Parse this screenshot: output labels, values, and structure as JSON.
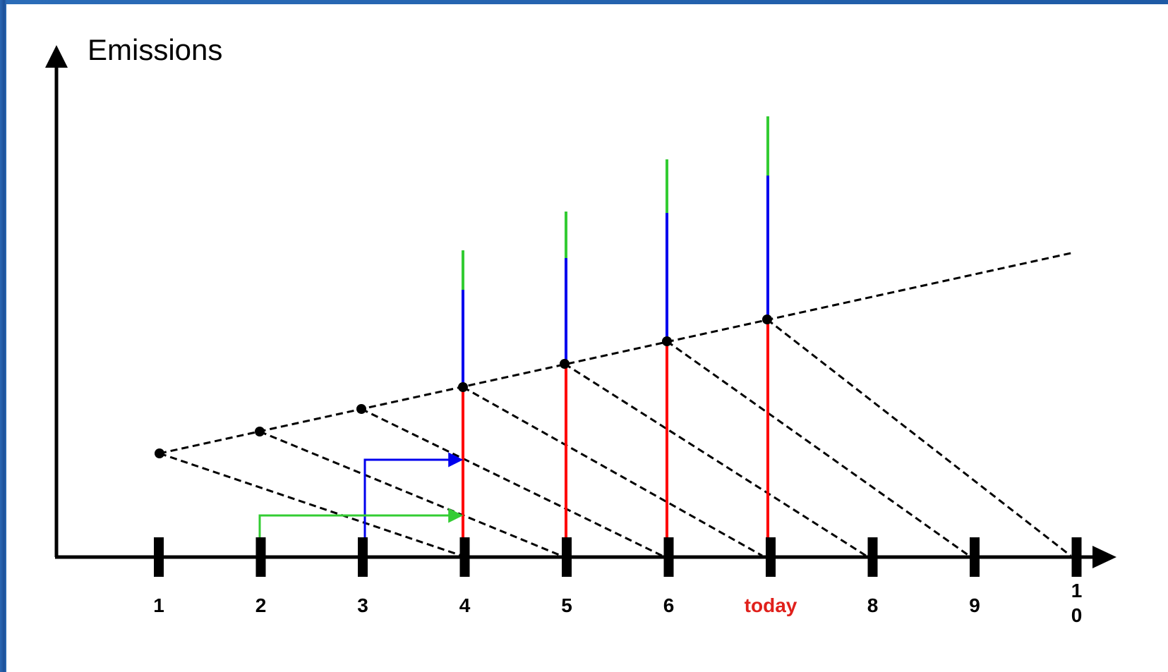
{
  "diagram": {
    "y_axis_label": "Emissions",
    "x_ticks": [
      {
        "label": "1"
      },
      {
        "label": "2"
      },
      {
        "label": "3"
      },
      {
        "label": "4"
      },
      {
        "label": "5"
      },
      {
        "label": "6"
      },
      {
        "label": "today",
        "highlight": true
      },
      {
        "label": "8"
      },
      {
        "label": "9"
      },
      {
        "label": "10",
        "stacked": [
          "1",
          "0"
        ]
      }
    ],
    "colors": {
      "axis": "#000000",
      "dashed_lines": "#000000",
      "segment_red": "#ff0000",
      "segment_blue": "#0000ee",
      "segment_green": "#33cc33",
      "today_label": "#e0201b",
      "frame": "#1f5aa6"
    }
  }
}
